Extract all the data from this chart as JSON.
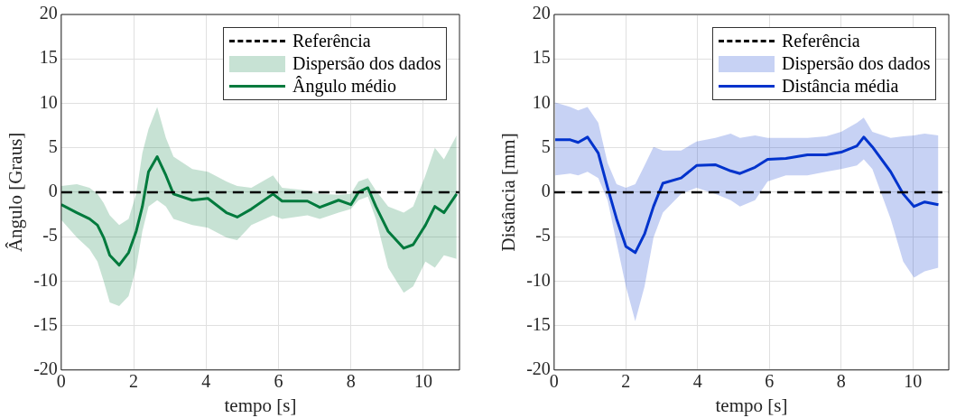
{
  "chart_data": [
    {
      "type": "line",
      "xlabel": "tempo [s]",
      "ylabel": "Ângulo [Graus]",
      "xlim": [
        0,
        11
      ],
      "xticks": [
        0,
        2,
        4,
        6,
        8,
        10
      ],
      "ylim": [
        -20,
        20
      ],
      "yticks": [
        -20,
        -15,
        -10,
        -5,
        0,
        5,
        10,
        15,
        20
      ],
      "grid": true,
      "legend": "top right",
      "line_style": "solid",
      "annotations": [
        "Dispersão dos dados"
      ],
      "x": [
        0,
        0.43,
        0.78,
        1.0,
        1.17,
        1.34,
        1.6,
        1.86,
        2.07,
        2.24,
        2.41,
        2.65,
        2.89,
        3.1,
        3.62,
        4.05,
        4.56,
        4.86,
        5.25,
        5.85,
        6.1,
        6.8,
        7.14,
        7.66,
        8.0,
        8.21,
        8.47,
        8.69,
        9.03,
        9.46,
        9.72,
        10.06,
        10.32,
        10.57,
        10.92
      ],
      "ref_lines": [
        {
          "axis": "y",
          "value": 0,
          "label": "Referência",
          "color": "#000000",
          "line_style": "dashed"
        }
      ],
      "series": [
        {
          "name": "Ângulo médio",
          "color": "#007a3d",
          "values": [
            -1.4,
            -2.3,
            -3.0,
            -3.7,
            -5.1,
            -7.1,
            -8.2,
            -6.8,
            -4.4,
            -1.6,
            2.3,
            4.0,
            1.9,
            -0.2,
            -0.9,
            -0.7,
            -2.3,
            -2.8,
            -1.9,
            -0.2,
            -1.0,
            -1.0,
            -1.7,
            -0.9,
            -1.4,
            0,
            0.5,
            -1.6,
            -4.4,
            -6.3,
            -5.9,
            -3.7,
            -1.6,
            -2.3,
            -0.2
          ],
          "upper": [
            0.7,
            0.9,
            0.5,
            -0.2,
            -1.2,
            -2.6,
            -3.7,
            -3.0,
            -0.2,
            4.4,
            7.1,
            9.6,
            6.1,
            4.0,
            2.6,
            2.3,
            1.2,
            0.7,
            0.5,
            1.9,
            0.5,
            0.2,
            -0.2,
            -0.3,
            -0.2,
            1.2,
            1.6,
            0.2,
            -1.6,
            -2.3,
            -1.6,
            1.9,
            5.0,
            3.7,
            6.4
          ],
          "lower": [
            -3.1,
            -5.1,
            -6.4,
            -7.8,
            -10,
            -12.4,
            -12.8,
            -11.7,
            -8.5,
            -4.4,
            -1.6,
            -0.9,
            -1.6,
            -3.0,
            -3.7,
            -4.0,
            -5.1,
            -5.4,
            -3.7,
            -2.6,
            -3.0,
            -2.6,
            -3.0,
            -2.3,
            -1.9,
            -0.9,
            -0.5,
            -3.0,
            -8.5,
            -11.3,
            -10.6,
            -7.8,
            -8.5,
            -7.1,
            -7.5
          ]
        }
      ]
    },
    {
      "type": "line",
      "xlabel": "tempo [s]",
      "ylabel": "Distância [mm]",
      "xlim": [
        0,
        11
      ],
      "xticks": [
        0,
        2,
        4,
        6,
        8,
        10
      ],
      "ylim": [
        -20,
        20
      ],
      "yticks": [
        -20,
        -15,
        -10,
        -5,
        0,
        5,
        10,
        15,
        20
      ],
      "grid": true,
      "legend": "top right",
      "line_style": "solid",
      "annotations": [
        "Dispersão dos dados"
      ],
      "x": [
        0.03,
        0.45,
        0.67,
        0.93,
        1.23,
        1.49,
        1.74,
        2.0,
        2.26,
        2.52,
        2.77,
        3.03,
        3.54,
        3.97,
        4.49,
        4.92,
        5.18,
        5.6,
        5.95,
        6.46,
        7.06,
        7.58,
        8.0,
        8.44,
        8.63,
        8.87,
        9.38,
        9.73,
        10.03,
        10.33,
        10.71
      ],
      "ref_lines": [
        {
          "axis": "y",
          "value": 0,
          "label": "Referência",
          "color": "#000000",
          "line_style": "dashed"
        }
      ],
      "series": [
        {
          "name": "Distância média",
          "color": "#0033cc",
          "values": [
            5.9,
            5.9,
            5.6,
            6.2,
            4.4,
            0.5,
            -3.0,
            -6.1,
            -6.8,
            -4.7,
            -1.6,
            1.0,
            1.6,
            3.0,
            3.1,
            2.4,
            2.1,
            2.8,
            3.7,
            3.8,
            4.2,
            4.2,
            4.5,
            5.2,
            6.2,
            5.1,
            2.3,
            -0.2,
            -1.6,
            -1.1,
            -1.4
          ],
          "upper": [
            10.1,
            9.6,
            9.2,
            9.6,
            7.8,
            3.3,
            0.9,
            0.5,
            0.9,
            3.0,
            5.1,
            4.7,
            4.7,
            5.7,
            6.1,
            6.6,
            6.1,
            6.4,
            6.1,
            6.1,
            6.1,
            6.3,
            6.8,
            7.8,
            8.4,
            6.8,
            6.1,
            6.3,
            6.4,
            6.6,
            6.4
          ],
          "lower": [
            1.9,
            2.1,
            1.9,
            2.3,
            1.6,
            -0.9,
            -5.7,
            -10.6,
            -14.5,
            -10.6,
            -5.1,
            -2.3,
            -0.2,
            0.5,
            -0.2,
            -0.9,
            -1.6,
            -0.9,
            1.2,
            1.9,
            1.9,
            2.3,
            2.6,
            3.0,
            3.7,
            2.6,
            -3.0,
            -7.8,
            -9.6,
            -8.9,
            -8.5
          ]
        }
      ]
    }
  ]
}
